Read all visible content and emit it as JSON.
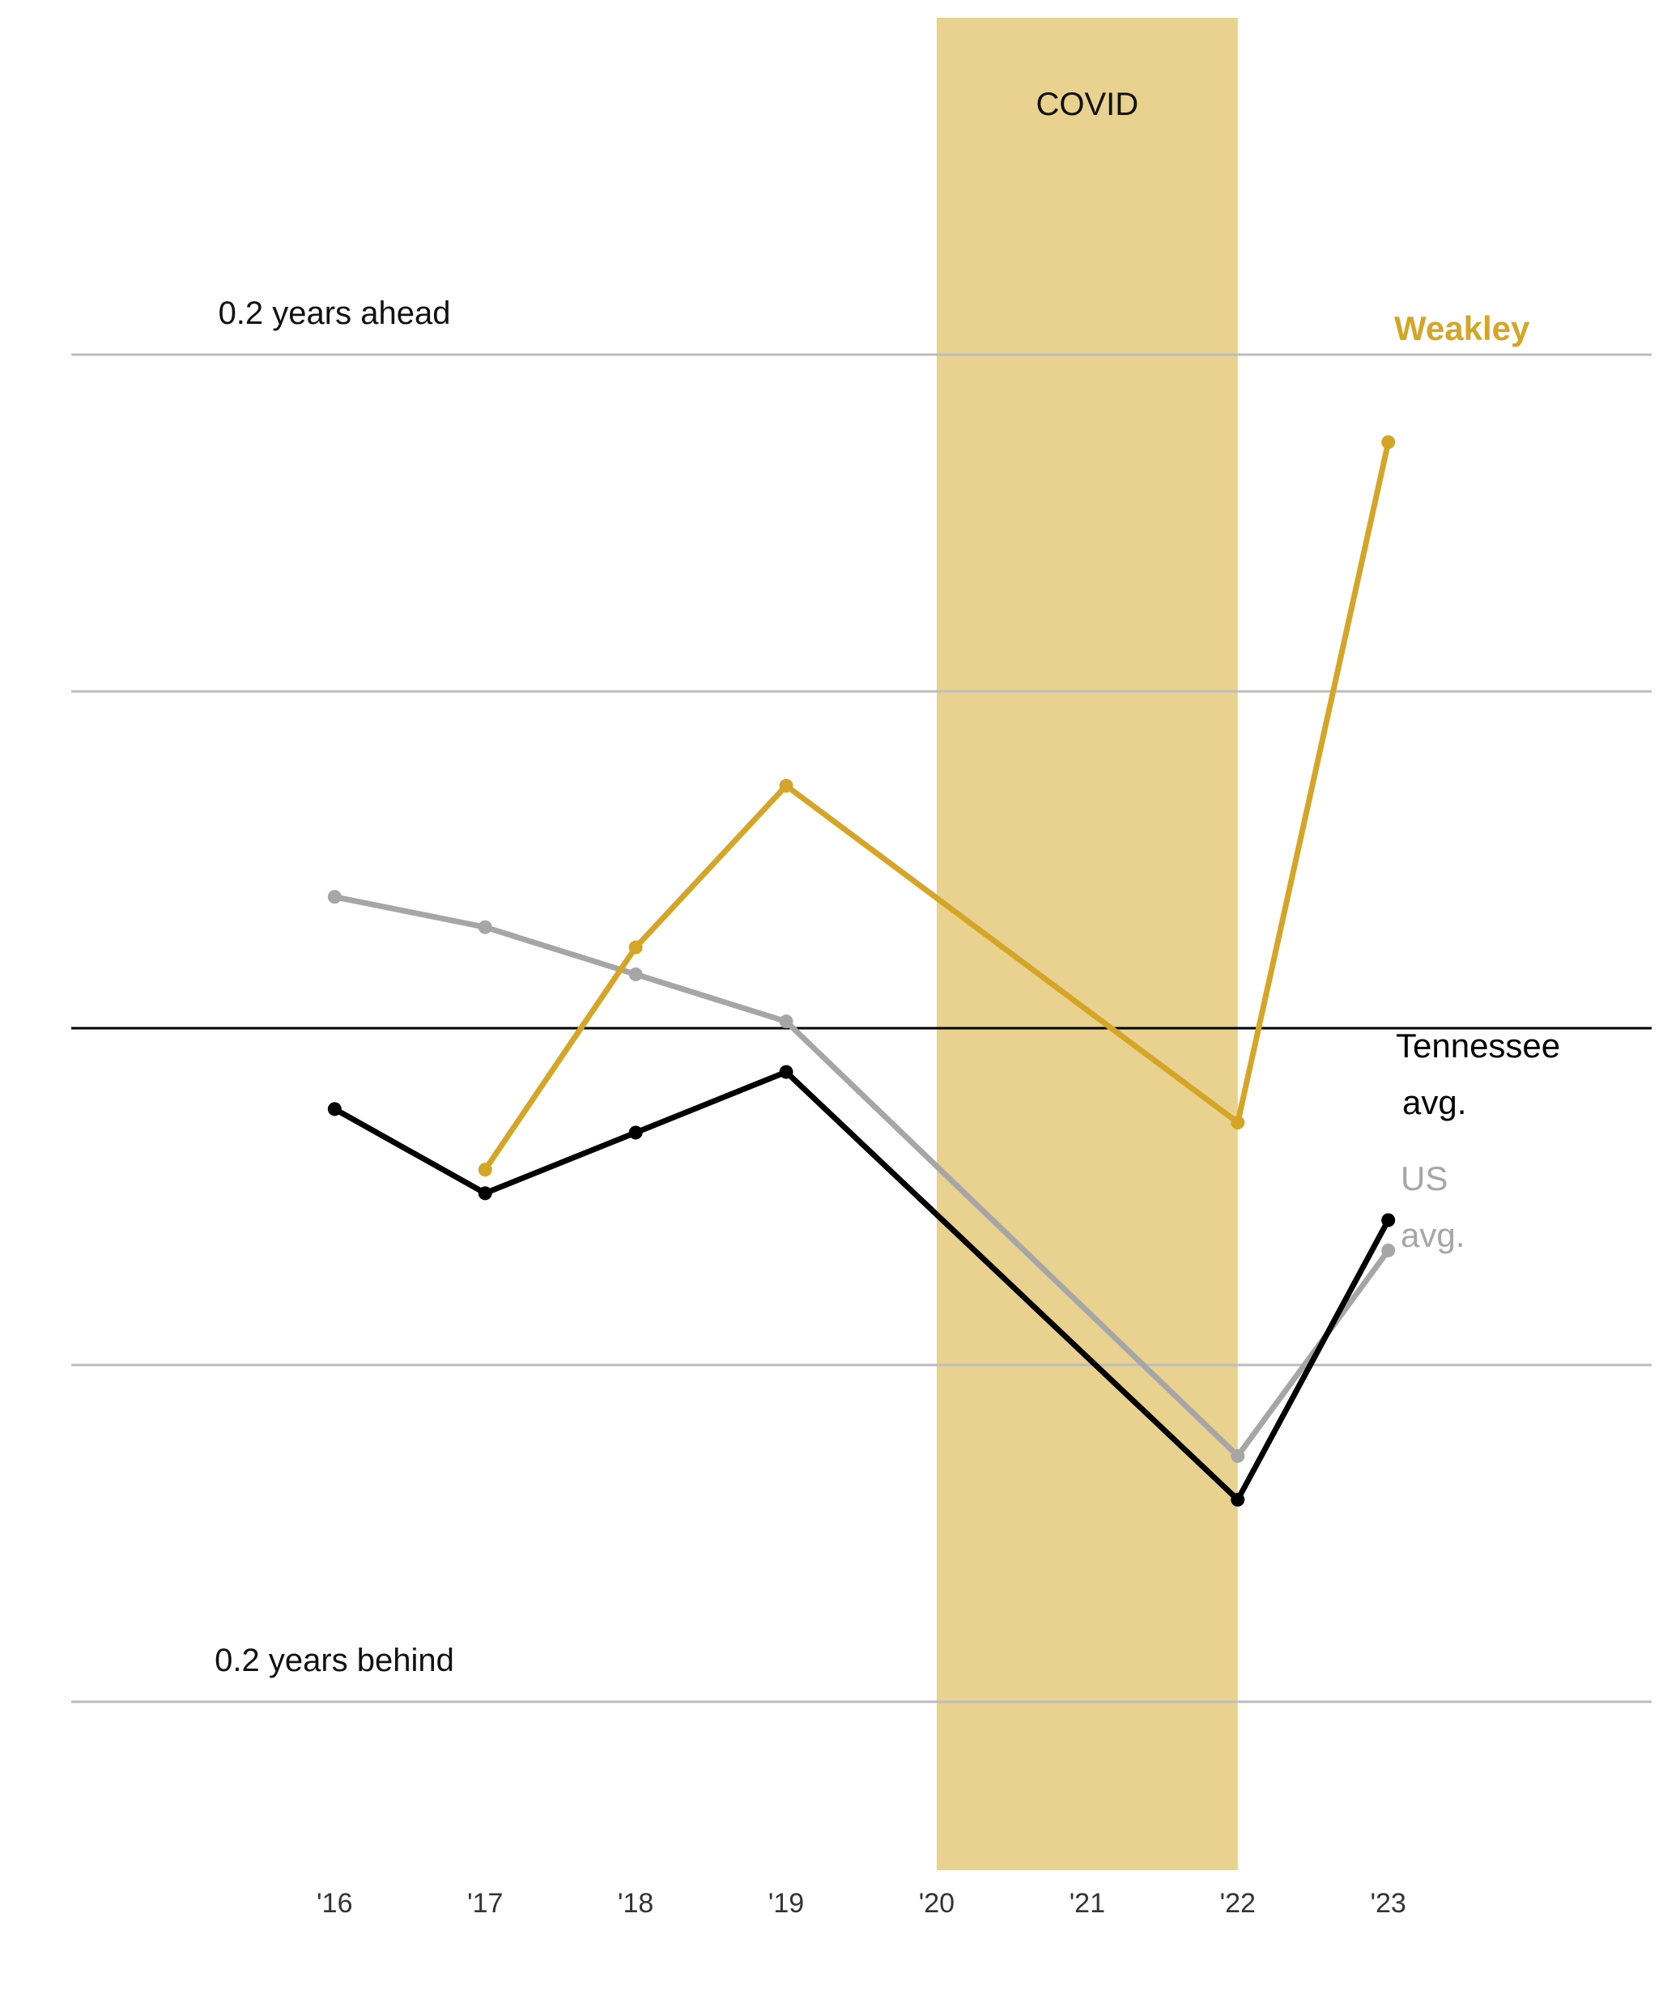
{
  "chart_data": {
    "type": "line",
    "x": [
      2016,
      2017,
      2018,
      2019,
      2020,
      2021,
      2022,
      2023
    ],
    "x_tick_labels": [
      "'16",
      "'17",
      "'18",
      "'19",
      "'20",
      "'21",
      "'22",
      "'23"
    ],
    "xlim": [
      2014.25,
      2024.75
    ],
    "ylim": [
      -0.25,
      0.3
    ],
    "y_gridlines": [
      0.2,
      0.1,
      -0.1,
      -0.2
    ],
    "zero_line": 0,
    "reference_labels": [
      {
        "text": "0.2 years ahead",
        "y": 0.2
      },
      {
        "text": "0.2 years behind",
        "y": -0.2
      }
    ],
    "shaded_band": {
      "label": "COVID",
      "x_start": 2020,
      "x_end": 2022,
      "color": "#e9d28f"
    },
    "series": [
      {
        "name": "US avg.",
        "label_lines": [
          "US",
          "avg."
        ],
        "color": "#a6a6a6",
        "points": [
          [
            2016,
            0.039
          ],
          [
            2017,
            0.03
          ],
          [
            2018,
            0.016
          ],
          [
            2019,
            0.002
          ],
          [
            2022,
            -0.127
          ],
          [
            2023,
            -0.066
          ]
        ]
      },
      {
        "name": "Tennessee avg.",
        "label_lines": [
          "Tennessee",
          "avg."
        ],
        "color": "#000000",
        "points": [
          [
            2016,
            -0.024
          ],
          [
            2017,
            -0.049
          ],
          [
            2018,
            -0.031
          ],
          [
            2019,
            -0.013
          ],
          [
            2022,
            -0.14
          ],
          [
            2023,
            -0.057
          ]
        ]
      },
      {
        "name": "Weakley",
        "label_lines": [
          "Weakley"
        ],
        "color": "#d4a526",
        "points": [
          [
            2017,
            -0.042
          ],
          [
            2018,
            0.024
          ],
          [
            2019,
            0.072
          ],
          [
            2022,
            -0.028
          ],
          [
            2023,
            0.174
          ]
        ]
      }
    ],
    "grid": true,
    "legend": "direct labels at line ends"
  }
}
